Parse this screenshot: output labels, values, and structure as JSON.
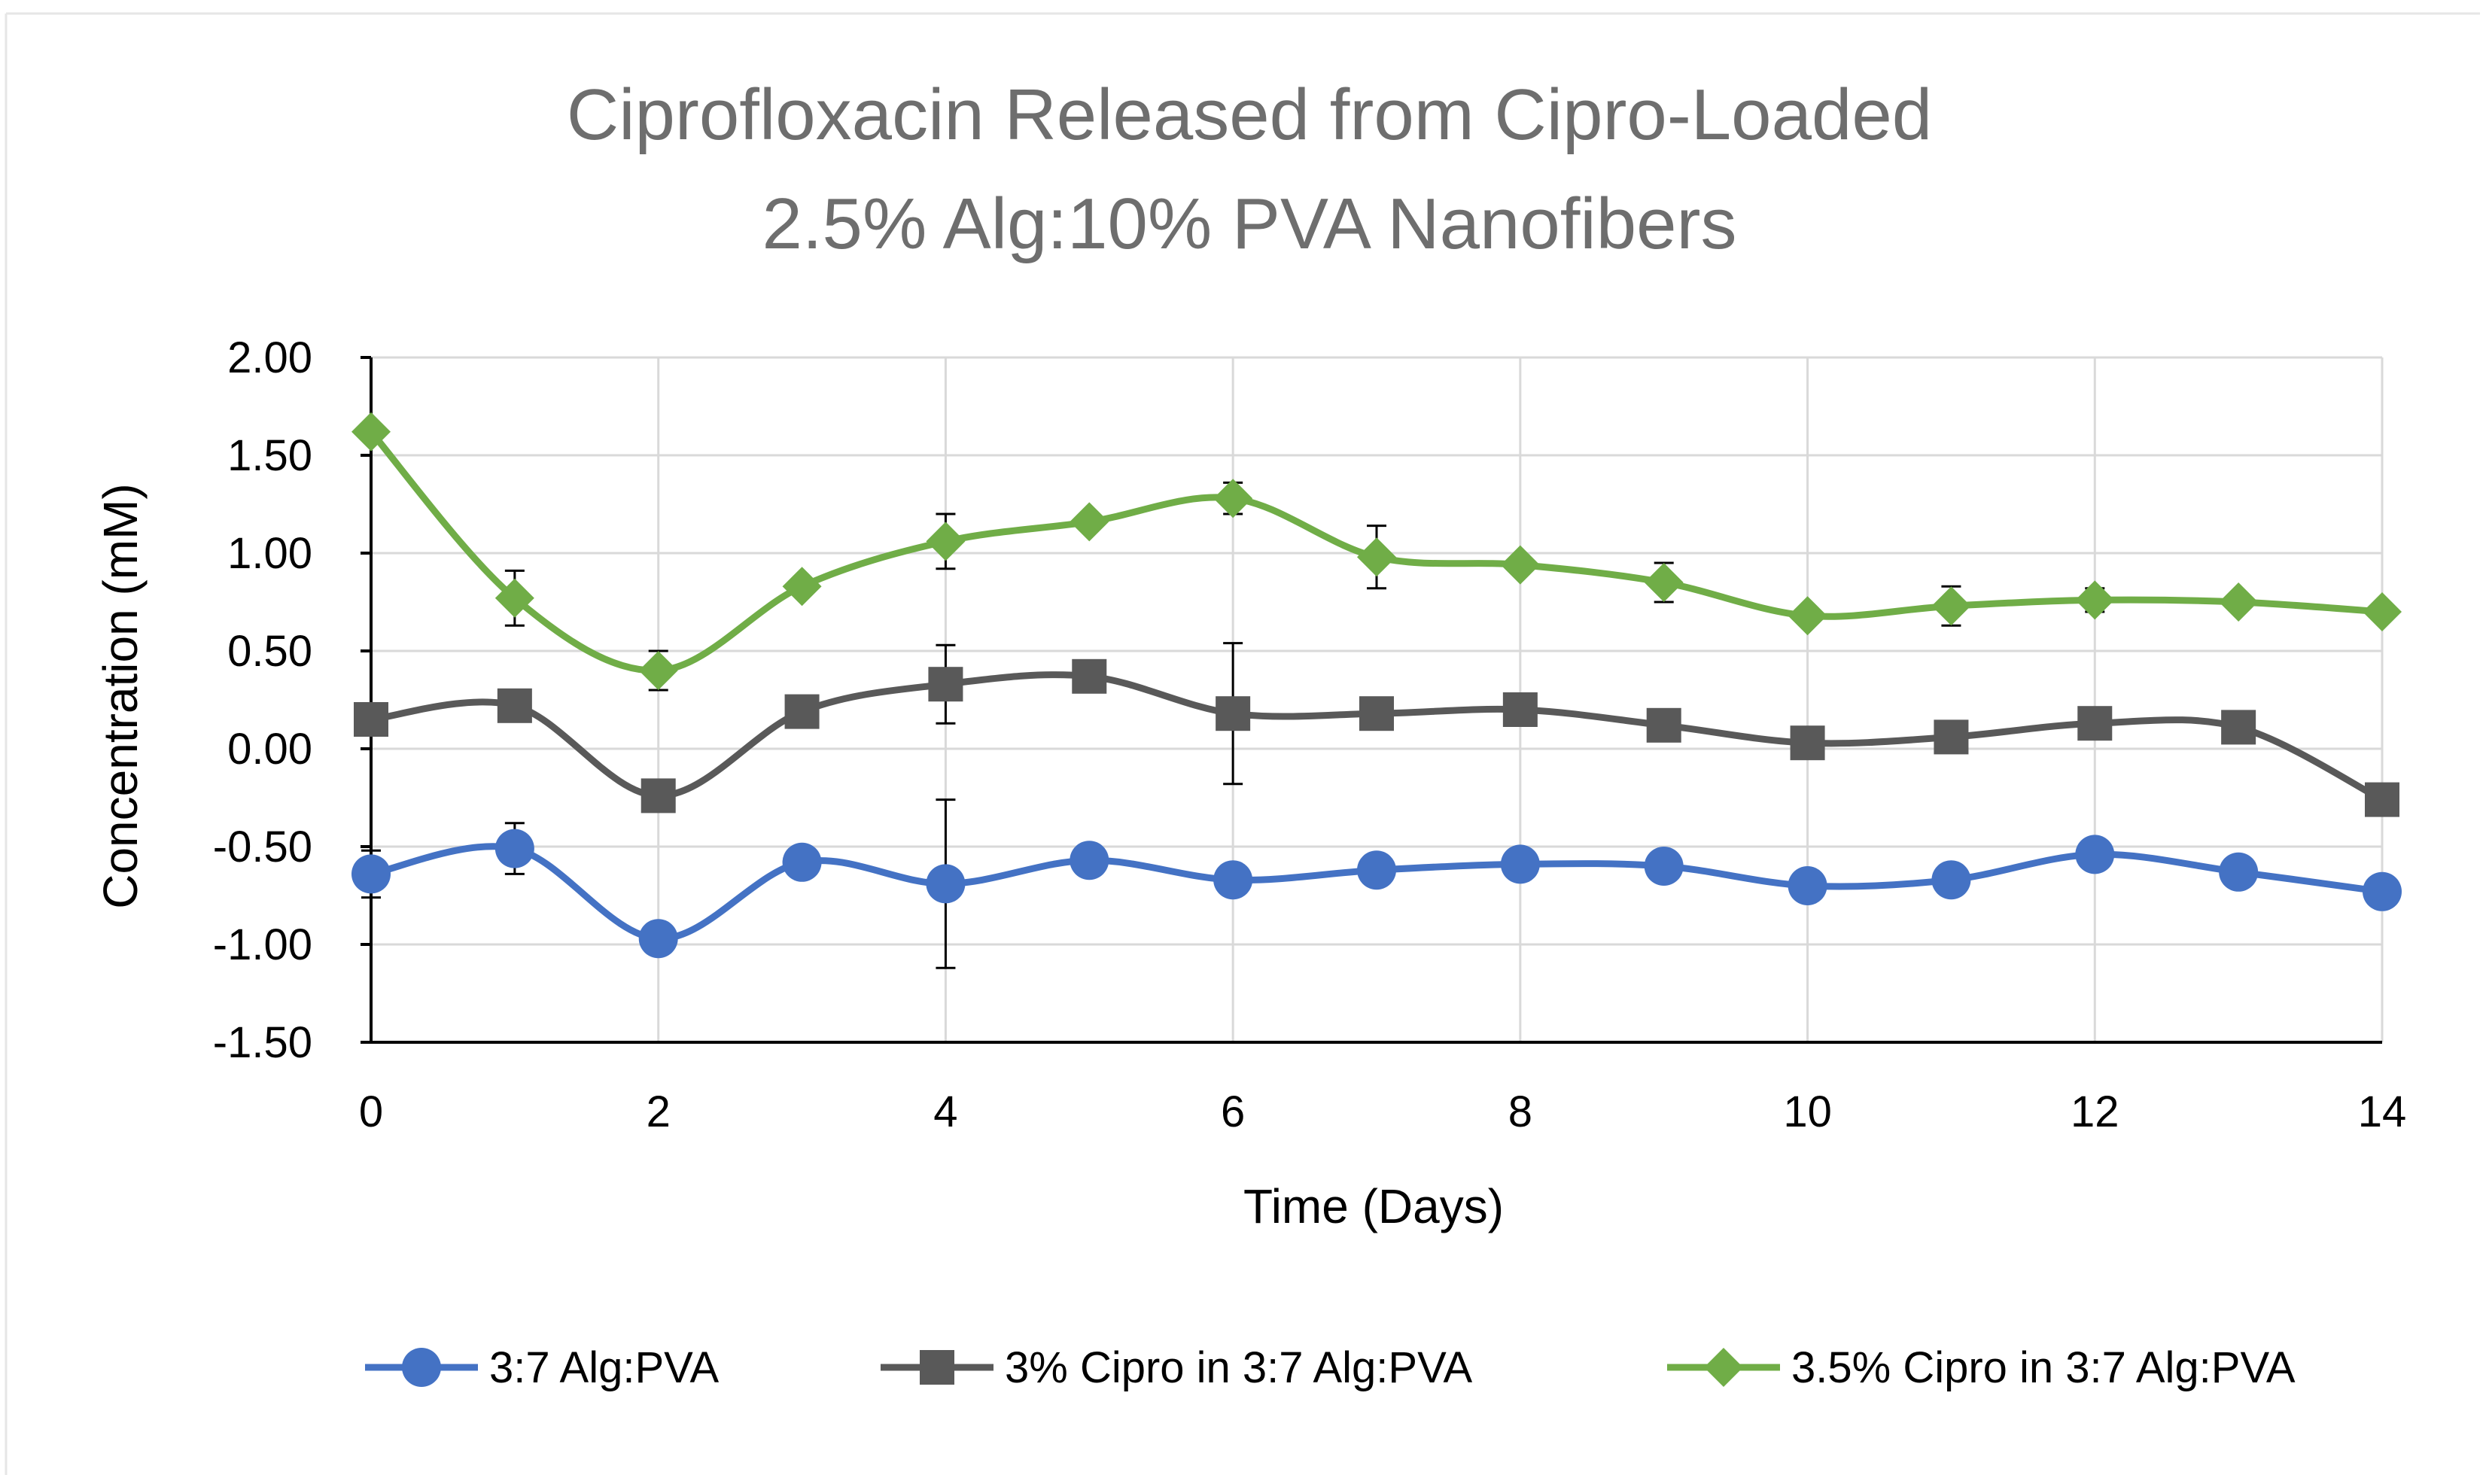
{
  "chart_data": {
    "type": "line",
    "title_lines": [
      "Ciprofloxacin Released from Cipro-Loaded",
      "2.5% Alg:10% PVA Nanofibers"
    ],
    "xlabel": "Time (Days)",
    "ylabel": "Concentration (mM)",
    "xlim": [
      0,
      14
    ],
    "ylim": [
      -1.5,
      2.0
    ],
    "x_ticks": [
      0,
      2,
      4,
      6,
      8,
      10,
      12,
      14
    ],
    "x_tick_labels": [
      "0",
      "2",
      "4",
      "6",
      "8",
      "10",
      "12",
      "14"
    ],
    "y_ticks": [
      2.0,
      1.5,
      1.0,
      0.5,
      0.0,
      -0.5,
      -1.0,
      -1.5
    ],
    "y_tick_labels": [
      "2.00",
      "1.50",
      "1.00",
      "0.50",
      "0.00",
      "-0.50",
      "-1.00",
      "-1.50"
    ],
    "grid": true,
    "legend_position": "bottom",
    "x": [
      0,
      1,
      2,
      3,
      4,
      5,
      6,
      7,
      8,
      9,
      10,
      11,
      12,
      13,
      14
    ],
    "series": [
      {
        "name": "3:7 Alg:PVA",
        "color": "#4472c4",
        "marker": "circle",
        "values": [
          -0.64,
          -0.51,
          -0.97,
          -0.58,
          -0.69,
          -0.57,
          -0.67,
          -0.62,
          -0.59,
          -0.6,
          -0.7,
          -0.67,
          -0.54,
          -0.63,
          -0.73
        ],
        "errors": [
          0.12,
          0.13,
          0,
          0,
          0.43,
          0,
          0,
          0,
          0,
          0,
          0,
          0,
          0,
          0,
          0
        ]
      },
      {
        "name": "3% Cipro in 3:7 Alg:PVA",
        "color": "#595959",
        "marker": "square",
        "values": [
          0.15,
          0.22,
          -0.24,
          0.19,
          0.33,
          0.37,
          0.18,
          0.18,
          0.2,
          0.12,
          0.03,
          0.06,
          0.13,
          0.11,
          -0.26
        ],
        "errors": [
          0,
          0,
          0,
          0,
          0.2,
          0,
          0.36,
          0,
          0,
          0,
          0,
          0,
          0,
          0,
          0
        ]
      },
      {
        "name": "3.5% Cipro in 3:7 Alg:PVA",
        "color": "#70ad47",
        "marker": "diamond",
        "values": [
          1.62,
          0.77,
          0.4,
          0.83,
          1.06,
          1.16,
          1.28,
          0.98,
          0.94,
          0.85,
          0.68,
          0.73,
          0.76,
          0.75,
          0.7
        ],
        "errors": [
          0,
          0.14,
          0.1,
          0,
          0.14,
          0,
          0.08,
          0.16,
          0,
          0.1,
          0,
          0.1,
          0.06,
          0,
          0
        ]
      }
    ]
  }
}
